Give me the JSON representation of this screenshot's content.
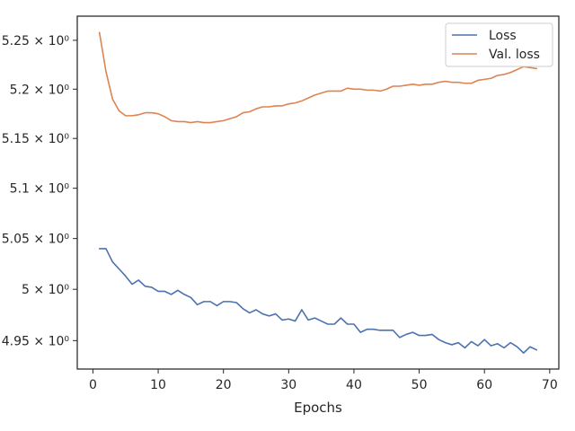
{
  "chart_data": {
    "type": "line",
    "title": "",
    "xlabel": "Epochs",
    "ylabel": "",
    "yscale": "log",
    "xlim": [
      -2.4,
      71.4
    ],
    "ylim": [
      4.9225,
      5.2749
    ],
    "grid": false,
    "legend_position": "top-right",
    "x_ticks": [
      {
        "value": 0,
        "label": "0"
      },
      {
        "value": 10,
        "label": "10"
      },
      {
        "value": 20,
        "label": "20"
      },
      {
        "value": 30,
        "label": "30"
      },
      {
        "value": 40,
        "label": "40"
      },
      {
        "value": 50,
        "label": "50"
      },
      {
        "value": 60,
        "label": "60"
      },
      {
        "value": 70,
        "label": "70"
      }
    ],
    "y_ticks": [
      {
        "value": 4.95,
        "label": "4.95 × 10⁰"
      },
      {
        "value": 5.0,
        "label": "5 × 10⁰"
      },
      {
        "value": 5.05,
        "label": "5.05 × 10⁰"
      },
      {
        "value": 5.1,
        "label": "5.1 × 10⁰"
      },
      {
        "value": 5.15,
        "label": "5.15 × 10⁰"
      },
      {
        "value": 5.2,
        "label": "5.2 × 10⁰"
      },
      {
        "value": 5.25,
        "label": "5.25 × 10⁰"
      }
    ],
    "x": [
      1,
      2,
      3,
      4,
      5,
      6,
      7,
      8,
      9,
      10,
      11,
      12,
      13,
      14,
      15,
      16,
      17,
      18,
      19,
      20,
      21,
      22,
      23,
      24,
      25,
      26,
      27,
      28,
      29,
      30,
      31,
      32,
      33,
      34,
      35,
      36,
      37,
      38,
      39,
      40,
      41,
      42,
      43,
      44,
      45,
      46,
      47,
      48,
      49,
      50,
      51,
      52,
      53,
      54,
      55,
      56,
      57,
      58,
      59,
      60,
      61,
      62,
      63,
      64,
      65,
      66,
      67,
      68
    ],
    "series": [
      {
        "name": "Loss",
        "color": "#4c72b0",
        "values": [
          5.04,
          5.04,
          5.027,
          5.02,
          5.013,
          5.005,
          5.009,
          5.003,
          5.002,
          4.998,
          4.998,
          4.995,
          4.999,
          4.995,
          4.992,
          4.985,
          4.988,
          4.988,
          4.984,
          4.988,
          4.988,
          4.987,
          4.981,
          4.977,
          4.98,
          4.976,
          4.974,
          4.976,
          4.97,
          4.971,
          4.969,
          4.98,
          4.97,
          4.972,
          4.969,
          4.966,
          4.966,
          4.972,
          4.966,
          4.966,
          4.958,
          4.961,
          4.961,
          4.96,
          4.96,
          4.96,
          4.953,
          4.956,
          4.958,
          4.955,
          4.955,
          4.956,
          4.951,
          4.948,
          4.946,
          4.948,
          4.943,
          4.949,
          4.945,
          4.951,
          4.945,
          4.947,
          4.943,
          4.948,
          4.944,
          4.938,
          4.944,
          4.941
        ]
      },
      {
        "name": "Val. loss",
        "color": "#dd8452",
        "values": [
          5.258,
          5.218,
          5.19,
          5.178,
          5.173,
          5.173,
          5.174,
          5.176,
          5.176,
          5.175,
          5.172,
          5.168,
          5.167,
          5.167,
          5.166,
          5.167,
          5.166,
          5.166,
          5.167,
          5.168,
          5.17,
          5.172,
          5.176,
          5.177,
          5.18,
          5.182,
          5.182,
          5.183,
          5.183,
          5.185,
          5.186,
          5.188,
          5.191,
          5.194,
          5.196,
          5.198,
          5.198,
          5.198,
          5.201,
          5.2,
          5.2,
          5.199,
          5.199,
          5.198,
          5.2,
          5.203,
          5.203,
          5.204,
          5.205,
          5.204,
          5.205,
          5.205,
          5.207,
          5.208,
          5.207,
          5.207,
          5.206,
          5.206,
          5.209,
          5.21,
          5.211,
          5.214,
          5.215,
          5.217,
          5.22,
          5.223,
          5.222,
          5.221
        ]
      }
    ]
  }
}
